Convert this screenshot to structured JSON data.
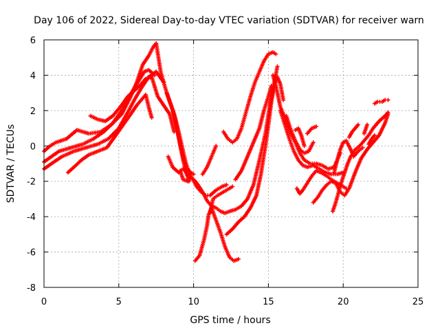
{
  "chart_data": {
    "type": "scatter",
    "title": "Day 106 of 2022, Sidereal Day-to-day VTEC variation (SDTVAR) for receiver warn",
    "xlabel": "GPS time / hours",
    "ylabel": "SDTVAR / TECUs",
    "xlim": [
      0,
      25
    ],
    "ylim": [
      -8,
      6
    ],
    "xticks": [
      0,
      5,
      10,
      15,
      20,
      25
    ],
    "yticks": [
      -8,
      -6,
      -4,
      -2,
      0,
      2,
      4,
      6
    ],
    "grid": true,
    "legend": "none",
    "marker": "+",
    "colors": {
      "series": "#ff0000",
      "axis": "#000000",
      "grid": "#a0a0a0"
    },
    "series": [
      {
        "points": [
          [
            0.0,
            -0.3
          ],
          [
            0.4,
            0.0
          ],
          [
            0.8,
            0.2
          ],
          [
            1.5,
            0.4
          ],
          [
            2.2,
            0.9
          ],
          [
            3.0,
            0.7
          ],
          [
            3.8,
            0.8
          ],
          [
            4.5,
            1.2
          ],
          [
            5.2,
            1.8
          ],
          [
            5.8,
            2.8
          ],
          [
            6.2,
            3.6
          ],
          [
            6.6,
            4.6
          ],
          [
            7.0,
            5.1
          ],
          [
            7.3,
            5.6
          ],
          [
            7.5,
            5.8
          ]
        ]
      },
      {
        "points": [
          [
            0.0,
            -0.9
          ],
          [
            0.5,
            -0.6
          ],
          [
            1.0,
            -0.3
          ],
          [
            1.8,
            -0.1
          ],
          [
            2.6,
            0.1
          ],
          [
            3.3,
            0.4
          ],
          [
            4.0,
            0.8
          ],
          [
            4.6,
            1.3
          ],
          [
            5.2,
            2.0
          ],
          [
            5.7,
            2.8
          ],
          [
            6.2,
            3.5
          ],
          [
            6.7,
            4.2
          ],
          [
            7.0,
            4.3
          ],
          [
            7.4,
            4.0
          ]
        ]
      },
      {
        "points": [
          [
            0.0,
            -1.3
          ],
          [
            0.5,
            -1.0
          ],
          [
            1.2,
            -0.6
          ],
          [
            2.0,
            -0.3
          ],
          [
            2.8,
            -0.1
          ],
          [
            3.6,
            0.1
          ],
          [
            4.3,
            0.4
          ],
          [
            5.0,
            1.0
          ],
          [
            5.6,
            1.9
          ],
          [
            6.1,
            2.7
          ],
          [
            6.6,
            3.4
          ],
          [
            7.0,
            3.9
          ],
          [
            7.5,
            4.2
          ],
          [
            8.0,
            3.6
          ]
        ]
      },
      {
        "points": [
          [
            1.6,
            -1.5
          ],
          [
            2.0,
            -1.2
          ],
          [
            2.5,
            -0.8
          ],
          [
            3.0,
            -0.5
          ],
          [
            3.6,
            -0.3
          ],
          [
            4.2,
            -0.1
          ],
          [
            4.8,
            0.6
          ],
          [
            5.3,
            1.2
          ],
          [
            5.8,
            1.8
          ],
          [
            6.2,
            2.3
          ],
          [
            6.5,
            2.6
          ],
          [
            6.8,
            2.9
          ],
          [
            7.0,
            2.2
          ],
          [
            7.2,
            1.6
          ]
        ]
      },
      {
        "points": [
          [
            3.1,
            1.7
          ],
          [
            3.6,
            1.5
          ],
          [
            4.1,
            1.4
          ],
          [
            4.6,
            1.7
          ],
          [
            5.1,
            2.2
          ],
          [
            5.6,
            2.8
          ],
          [
            6.0,
            3.1
          ],
          [
            6.4,
            3.4
          ],
          [
            6.8,
            3.8
          ],
          [
            7.2,
            3.9
          ],
          [
            7.6,
            2.8
          ],
          [
            8.0,
            2.3
          ],
          [
            8.4,
            1.8
          ],
          [
            8.7,
            0.8
          ]
        ]
      },
      {
        "points": [
          [
            7.5,
            5.8
          ],
          [
            7.8,
            4.2
          ],
          [
            8.1,
            3.3
          ],
          [
            8.4,
            2.5
          ],
          [
            8.7,
            1.8
          ],
          [
            9.0,
            0.5
          ],
          [
            9.3,
            -0.8
          ],
          [
            9.5,
            -1.5
          ],
          [
            9.7,
            -2.0
          ]
        ]
      },
      {
        "points": [
          [
            8.2,
            3.0
          ],
          [
            8.5,
            2.3
          ],
          [
            8.8,
            1.5
          ],
          [
            9.0,
            0.8
          ],
          [
            9.3,
            -0.3
          ],
          [
            9.5,
            -1.0
          ],
          [
            9.8,
            -1.7
          ]
        ]
      },
      {
        "points": [
          [
            8.6,
            2.0
          ],
          [
            8.9,
            0.9
          ],
          [
            9.2,
            -0.3
          ],
          [
            9.5,
            -1.2
          ],
          [
            9.8,
            -1.5
          ],
          [
            10.0,
            -1.6
          ]
        ]
      },
      {
        "points": [
          [
            9.1,
            -1.4
          ],
          [
            9.3,
            -1.9
          ],
          [
            9.6,
            -2.0
          ],
          [
            9.8,
            -1.8
          ],
          [
            10.0,
            -1.9
          ],
          [
            10.2,
            -2.1
          ]
        ]
      },
      {
        "points": [
          [
            8.3,
            -0.6
          ],
          [
            8.6,
            -1.2
          ],
          [
            9.0,
            -1.5
          ],
          [
            9.3,
            -1.3
          ],
          [
            9.6,
            -1.6
          ],
          [
            9.9,
            -1.8
          ],
          [
            10.2,
            -2.3
          ],
          [
            10.5,
            -2.6
          ],
          [
            10.8,
            -2.8
          ],
          [
            11.1,
            -2.8
          ],
          [
            11.5,
            -2.5
          ],
          [
            11.9,
            -2.3
          ],
          [
            12.2,
            -2.2
          ]
        ]
      },
      {
        "points": [
          [
            10.6,
            -1.6
          ],
          [
            10.9,
            -1.2
          ],
          [
            11.2,
            -0.6
          ],
          [
            11.5,
            0.0
          ]
        ]
      },
      {
        "points": [
          [
            10.0,
            -1.9
          ],
          [
            10.3,
            -2.2
          ],
          [
            10.6,
            -2.6
          ],
          [
            10.9,
            -3.1
          ],
          [
            11.2,
            -3.4
          ],
          [
            11.5,
            -3.5
          ],
          [
            11.8,
            -3.7
          ],
          [
            12.1,
            -3.8
          ],
          [
            12.4,
            -3.7
          ],
          [
            12.8,
            -3.6
          ],
          [
            13.2,
            -3.4
          ],
          [
            13.6,
            -3.0
          ],
          [
            14.0,
            -2.2
          ],
          [
            14.4,
            -0.8
          ],
          [
            14.8,
            0.7
          ],
          [
            15.1,
            2.3
          ],
          [
            15.4,
            3.6
          ],
          [
            15.6,
            4.5
          ]
        ]
      },
      {
        "points": [
          [
            10.1,
            -6.5
          ],
          [
            10.4,
            -6.2
          ],
          [
            10.7,
            -5.3
          ],
          [
            10.9,
            -4.5
          ],
          [
            11.0,
            -3.9
          ],
          [
            11.2,
            -3.5
          ],
          [
            11.5,
            -4.2
          ],
          [
            11.8,
            -4.9
          ],
          [
            12.1,
            -5.7
          ],
          [
            12.4,
            -6.3
          ],
          [
            12.7,
            -6.5
          ],
          [
            13.0,
            -6.4
          ]
        ]
      },
      {
        "points": [
          [
            11.1,
            -3.8
          ],
          [
            11.3,
            -3.0
          ],
          [
            11.6,
            -2.8
          ],
          [
            12.0,
            -2.6
          ],
          [
            12.4,
            -2.4
          ],
          [
            12.6,
            -2.3
          ]
        ]
      },
      {
        "points": [
          [
            12.2,
            -5.0
          ],
          [
            12.6,
            -4.7
          ],
          [
            13.0,
            -4.3
          ],
          [
            13.4,
            -4.0
          ],
          [
            13.8,
            -3.5
          ],
          [
            14.2,
            -2.8
          ],
          [
            14.5,
            -1.6
          ],
          [
            14.8,
            0.0
          ],
          [
            15.0,
            1.2
          ],
          [
            15.2,
            2.5
          ],
          [
            15.4,
            3.4
          ],
          [
            15.6,
            3.9
          ],
          [
            15.8,
            3.5
          ],
          [
            16.0,
            2.6
          ]
        ]
      },
      {
        "points": [
          [
            12.8,
            -1.9
          ],
          [
            13.2,
            -1.4
          ],
          [
            13.6,
            -0.6
          ],
          [
            14.0,
            0.2
          ],
          [
            14.4,
            1.0
          ],
          [
            14.7,
            2.0
          ],
          [
            15.0,
            2.8
          ],
          [
            15.2,
            3.4
          ]
        ]
      },
      {
        "points": [
          [
            12.0,
            0.8
          ],
          [
            12.3,
            0.4
          ],
          [
            12.6,
            0.2
          ],
          [
            12.9,
            0.4
          ],
          [
            13.2,
            1.0
          ],
          [
            13.5,
            1.9
          ],
          [
            13.8,
            2.8
          ],
          [
            14.1,
            3.6
          ],
          [
            14.4,
            4.2
          ],
          [
            14.7,
            4.8
          ],
          [
            15.0,
            5.2
          ],
          [
            15.3,
            5.3
          ],
          [
            15.5,
            5.2
          ]
        ]
      },
      {
        "points": [
          [
            15.3,
            4.0
          ],
          [
            15.5,
            3.4
          ],
          [
            15.8,
            2.2
          ],
          [
            16.2,
            1.4
          ],
          [
            16.5,
            0.7
          ],
          [
            16.8,
            0.2
          ],
          [
            17.1,
            -0.4
          ],
          [
            17.4,
            -0.8
          ],
          [
            17.8,
            -1.0
          ],
          [
            18.2,
            -1.0
          ],
          [
            18.6,
            -1.1
          ],
          [
            19.0,
            -1.3
          ],
          [
            19.4,
            -1.2
          ],
          [
            19.8,
            -0.4
          ]
        ]
      },
      {
        "points": [
          [
            15.8,
            2.0
          ],
          [
            16.1,
            1.2
          ],
          [
            16.4,
            0.4
          ],
          [
            16.7,
            -0.3
          ],
          [
            17.0,
            -0.8
          ],
          [
            17.3,
            -1.1
          ],
          [
            17.6,
            -1.2
          ],
          [
            18.0,
            -1.1
          ],
          [
            18.4,
            -1.3
          ],
          [
            18.8,
            -1.5
          ],
          [
            19.2,
            -1.6
          ],
          [
            19.6,
            -1.6
          ],
          [
            20.0,
            -1.5
          ]
        ]
      },
      {
        "points": [
          [
            16.2,
            1.7
          ],
          [
            16.5,
            0.9
          ],
          [
            16.8,
            0.3
          ],
          [
            17.1,
            -0.2
          ],
          [
            17.4,
            -0.4
          ],
          [
            17.7,
            -0.3
          ],
          [
            18.0,
            0.2
          ]
        ]
      },
      {
        "points": [
          [
            16.8,
            0.9
          ],
          [
            17.0,
            1.0
          ],
          [
            17.2,
            0.6
          ],
          [
            17.4,
            0.0
          ]
        ]
      },
      {
        "points": [
          [
            17.6,
            0.7
          ],
          [
            17.9,
            1.0
          ],
          [
            18.2,
            1.1
          ]
        ]
      },
      {
        "points": [
          [
            16.9,
            -2.4
          ],
          [
            17.1,
            -2.7
          ],
          [
            17.3,
            -2.5
          ],
          [
            17.6,
            -2.1
          ],
          [
            17.9,
            -1.7
          ],
          [
            18.2,
            -1.4
          ],
          [
            18.5,
            -1.5
          ],
          [
            18.9,
            -1.7
          ],
          [
            19.2,
            -1.9
          ],
          [
            19.6,
            -2.1
          ],
          [
            20.0,
            -2.3
          ],
          [
            20.2,
            -2.4
          ]
        ]
      },
      {
        "points": [
          [
            18.0,
            -3.2
          ],
          [
            18.3,
            -2.9
          ],
          [
            18.6,
            -2.5
          ],
          [
            18.9,
            -2.2
          ],
          [
            19.2,
            -2.0
          ],
          [
            19.5,
            -2.1
          ],
          [
            19.8,
            -2.6
          ],
          [
            20.1,
            -2.8
          ],
          [
            20.4,
            -2.4
          ],
          [
            20.8,
            -1.5
          ],
          [
            21.2,
            -0.7
          ],
          [
            21.6,
            -0.2
          ],
          [
            22.0,
            0.2
          ],
          [
            22.4,
            0.6
          ],
          [
            22.8,
            1.3
          ],
          [
            23.0,
            1.8
          ]
        ]
      },
      {
        "points": [
          [
            19.3,
            -3.7
          ],
          [
            19.5,
            -3.2
          ],
          [
            19.7,
            -2.6
          ],
          [
            19.9,
            -2.0
          ],
          [
            20.1,
            -1.5
          ],
          [
            20.3,
            -1.0
          ],
          [
            20.5,
            -0.6
          ],
          [
            20.8,
            -0.2
          ],
          [
            21.1,
            0.0
          ],
          [
            21.4,
            0.3
          ],
          [
            21.7,
            0.6
          ],
          [
            22.0,
            1.0
          ],
          [
            22.4,
            1.4
          ],
          [
            22.8,
            1.7
          ],
          [
            23.0,
            1.9
          ]
        ]
      },
      {
        "points": [
          [
            19.4,
            -1.5
          ],
          [
            19.6,
            -0.8
          ],
          [
            19.8,
            -0.2
          ],
          [
            20.0,
            0.2
          ],
          [
            20.2,
            0.3
          ],
          [
            20.5,
            -0.2
          ],
          [
            20.7,
            -0.6
          ],
          [
            21.0,
            -0.3
          ],
          [
            21.3,
            -0.1
          ]
        ]
      },
      {
        "points": [
          [
            20.4,
            0.5
          ],
          [
            20.6,
            0.8
          ],
          [
            20.8,
            1.0
          ],
          [
            21.0,
            1.2
          ]
        ]
      },
      {
        "points": [
          [
            21.4,
            0.7
          ],
          [
            21.6,
            1.2
          ]
        ]
      },
      {
        "points": [
          [
            21.7,
            0.1
          ],
          [
            21.9,
            0.4
          ],
          [
            22.1,
            0.6
          ]
        ]
      },
      {
        "points": [
          [
            22.1,
            2.4
          ],
          [
            22.3,
            2.5
          ],
          [
            22.6,
            2.5
          ],
          [
            22.8,
            2.6
          ],
          [
            23.0,
            2.6
          ]
        ]
      }
    ]
  }
}
